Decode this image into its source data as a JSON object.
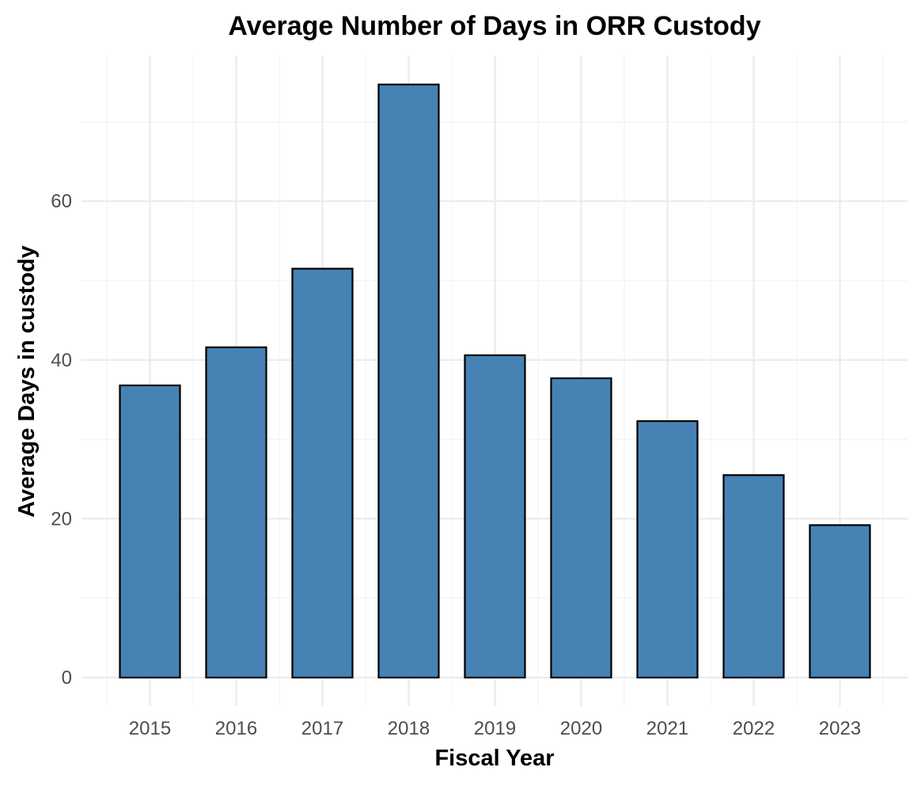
{
  "chart_data": {
    "type": "bar",
    "title": "Average Number of Days in ORR Custody",
    "xlabel": "Fiscal Year",
    "ylabel": "Average Days in custody",
    "categories": [
      "2015",
      "2016",
      "2017",
      "2018",
      "2019",
      "2020",
      "2021",
      "2022",
      "2023"
    ],
    "values": [
      36.8,
      41.6,
      51.5,
      74.7,
      40.6,
      37.7,
      32.3,
      25.5,
      19.2
    ],
    "ylim": [
      0,
      78
    ],
    "yticks": [
      0,
      20,
      40,
      60
    ],
    "ytick_labels": [
      "0",
      "20",
      "40",
      "60"
    ],
    "grid": true,
    "legend": "none",
    "bar_color": "#4682b4",
    "bar_outline": "#000000"
  }
}
